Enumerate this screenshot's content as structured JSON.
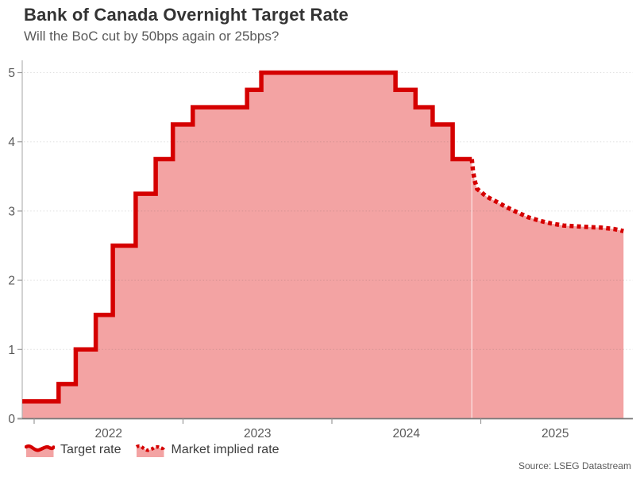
{
  "header": {
    "title": "Bank of Canada Overnight Target Rate",
    "subtitle": "Will the BoC cut by 50bps again or 25bps?"
  },
  "source": "Source: LSEG Datastream",
  "legend": [
    {
      "label": "Target rate",
      "icon": "area-solid-wave-swatch-icon"
    },
    {
      "label": "Market implied rate",
      "icon": "area-dotted-wave-swatch-icon"
    }
  ],
  "colors": {
    "line": "#d50000",
    "fill": "#f3a3a3",
    "grid": "rgba(80,80,80,0.18)",
    "axis": "#b3b3b3",
    "baseline": "#7a7a7a",
    "tick": "#999999",
    "tick_text": "#595959",
    "seam": "rgba(255,255,255,0.55)"
  },
  "chart_data": {
    "type": "area",
    "title": "Bank of Canada Overnight Target Rate",
    "xlabel": "",
    "ylabel": "",
    "ylim": [
      0,
      5
    ],
    "yticks": [
      0,
      1,
      2,
      3,
      4,
      5
    ],
    "xticks": [
      2022,
      2023,
      2024,
      2025
    ],
    "grid": true,
    "legend_position": "bottom",
    "series": [
      {
        "name": "Target rate",
        "style": "solid-step",
        "end_date": "2024-12-09",
        "points": [
          {
            "date": "2021-12-03",
            "rate": 0.25
          },
          {
            "date": "2022-03-02",
            "rate": 0.5
          },
          {
            "date": "2022-04-13",
            "rate": 1.0
          },
          {
            "date": "2022-06-01",
            "rate": 1.5
          },
          {
            "date": "2022-07-13",
            "rate": 2.5
          },
          {
            "date": "2022-09-07",
            "rate": 3.25
          },
          {
            "date": "2022-10-26",
            "rate": 3.75
          },
          {
            "date": "2022-12-07",
            "rate": 4.25
          },
          {
            "date": "2023-01-25",
            "rate": 4.5
          },
          {
            "date": "2023-06-07",
            "rate": 4.75
          },
          {
            "date": "2023-07-12",
            "rate": 5.0
          },
          {
            "date": "2024-06-05",
            "rate": 4.75
          },
          {
            "date": "2024-07-24",
            "rate": 4.5
          },
          {
            "date": "2024-09-04",
            "rate": 4.25
          },
          {
            "date": "2024-10-23",
            "rate": 3.75
          }
        ]
      },
      {
        "name": "Market implied rate",
        "style": "dotted-line",
        "points": [
          {
            "date": "2024-12-09",
            "rate": 3.75
          },
          {
            "date": "2024-12-12",
            "rate": 3.58
          },
          {
            "date": "2024-12-16",
            "rate": 3.44
          },
          {
            "date": "2024-12-22",
            "rate": 3.32
          },
          {
            "date": "2025-01-15",
            "rate": 3.21
          },
          {
            "date": "2025-02-10",
            "rate": 3.13
          },
          {
            "date": "2025-03-07",
            "rate": 3.05
          },
          {
            "date": "2025-04-01",
            "rate": 2.98
          },
          {
            "date": "2025-04-27",
            "rate": 2.91
          },
          {
            "date": "2025-05-25",
            "rate": 2.86
          },
          {
            "date": "2025-06-23",
            "rate": 2.82
          },
          {
            "date": "2025-07-23",
            "rate": 2.79
          },
          {
            "date": "2025-08-22",
            "rate": 2.78
          },
          {
            "date": "2025-09-20",
            "rate": 2.77
          },
          {
            "date": "2025-10-23",
            "rate": 2.76
          },
          {
            "date": "2025-11-24",
            "rate": 2.74
          },
          {
            "date": "2025-12-17",
            "rate": 2.71
          }
        ]
      }
    ]
  }
}
